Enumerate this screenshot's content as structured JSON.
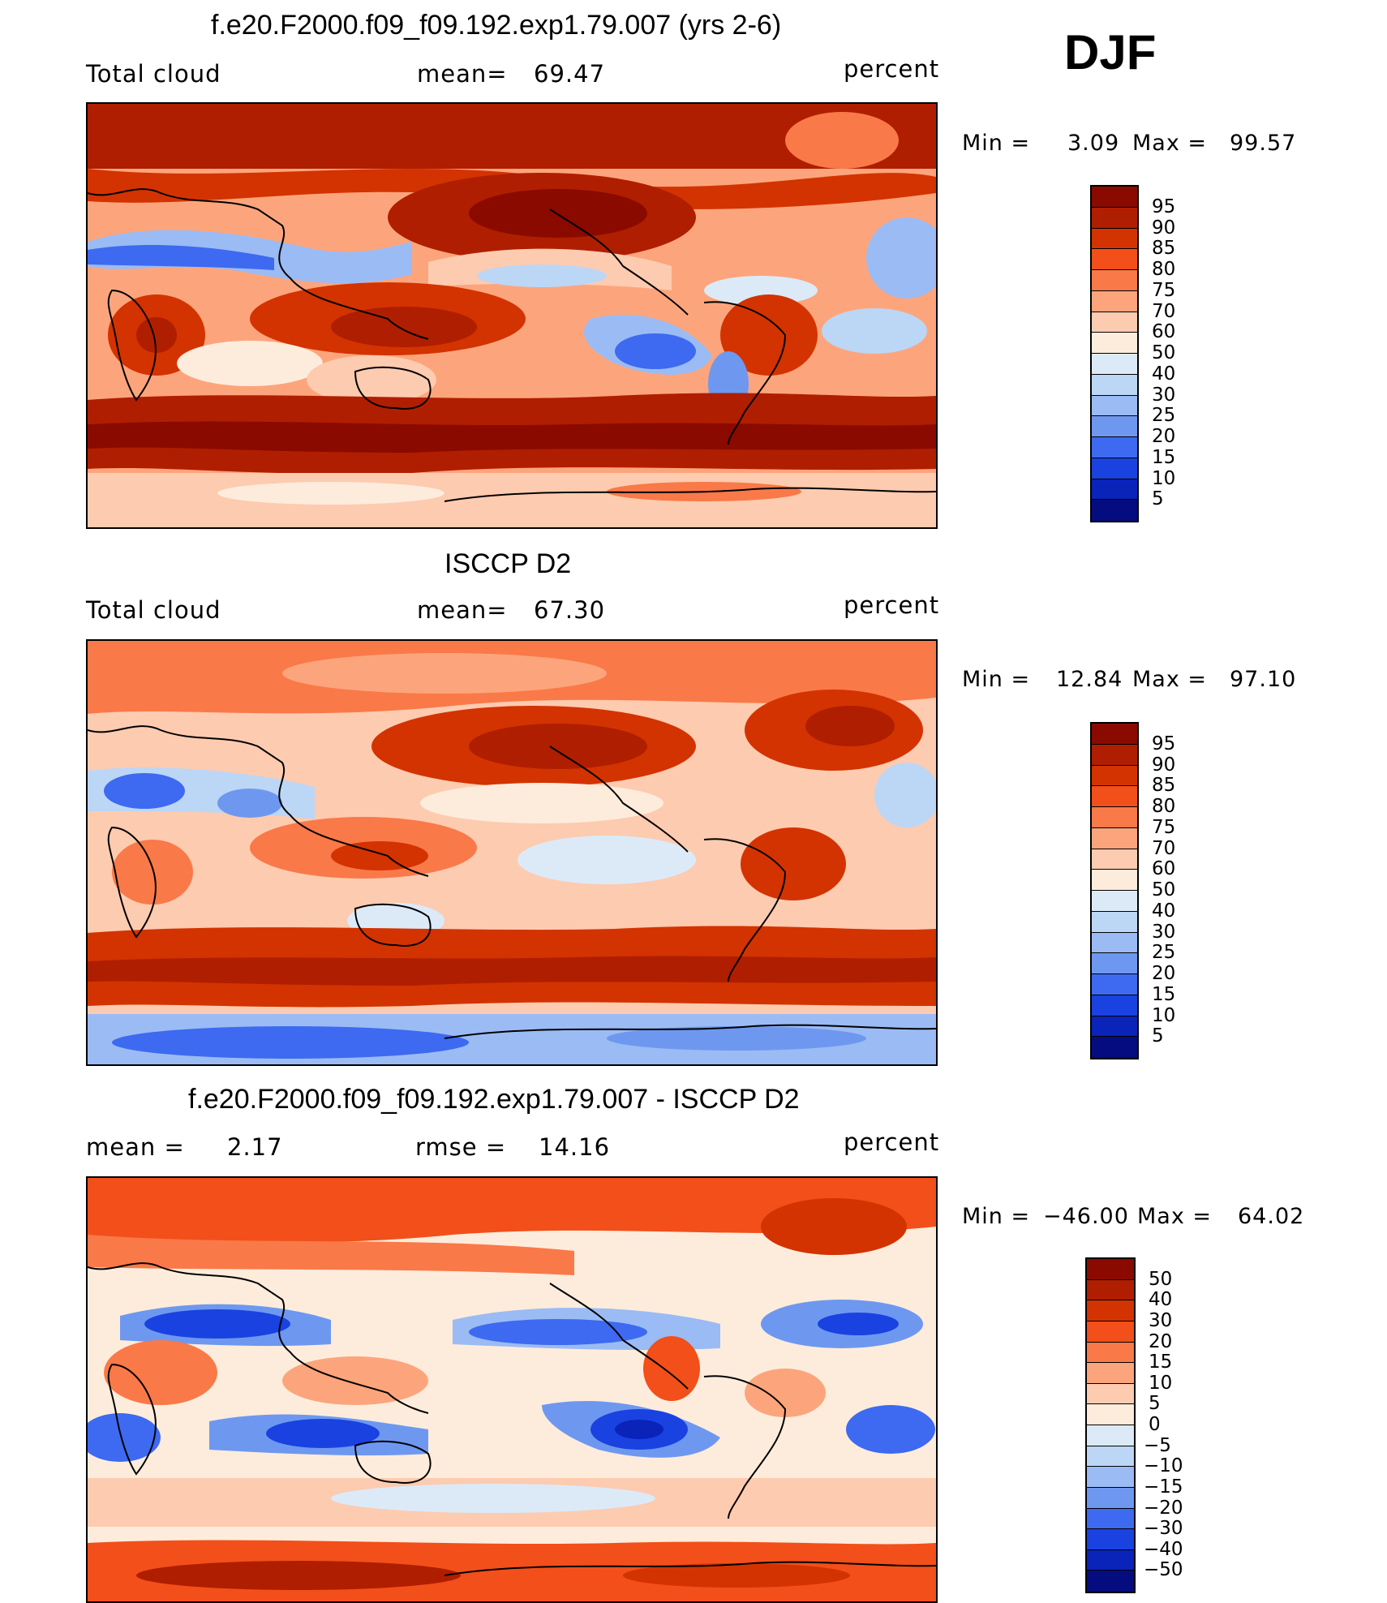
{
  "season": "DJF",
  "panels": [
    {
      "title": "f.e20.F2000.f09_f09.192.exp1.79.007 (yrs 2-6)",
      "left_label": "Total cloud",
      "center_label": "mean=",
      "center_value": "69.47",
      "units": "percent",
      "min_label": "Min =",
      "min_value": "3.09",
      "max_label": "Max =",
      "max_value": "99.57",
      "levels": [
        "95",
        "90",
        "85",
        "80",
        "75",
        "70",
        "60",
        "50",
        "40",
        "30",
        "25",
        "20",
        "15",
        "10",
        "5"
      ],
      "colors": [
        "#8a0a00",
        "#b01e00",
        "#d33300",
        "#f24f1a",
        "#fa7948",
        "#fca57c",
        "#fdcbb0",
        "#fdecdc",
        "#dceaf8",
        "#bcd6f6",
        "#9bbbf4",
        "#6e98f0",
        "#3d6af0",
        "#1a42e0",
        "#0a23b8",
        "#040c80"
      ]
    },
    {
      "title": "ISCCP D2",
      "left_label": "Total cloud",
      "center_label": "mean=",
      "center_value": "67.30",
      "units": "percent",
      "min_label": "Min =",
      "min_value": "12.84",
      "max_label": "Max =",
      "max_value": "97.10",
      "levels": [
        "95",
        "90",
        "85",
        "80",
        "75",
        "70",
        "60",
        "50",
        "40",
        "30",
        "25",
        "20",
        "15",
        "10",
        "5"
      ],
      "colors": [
        "#8a0a00",
        "#b01e00",
        "#d33300",
        "#f24f1a",
        "#fa7948",
        "#fca57c",
        "#fdcbb0",
        "#fdecdc",
        "#dceaf8",
        "#bcd6f6",
        "#9bbbf4",
        "#6e98f0",
        "#3d6af0",
        "#1a42e0",
        "#0a23b8",
        "#040c80"
      ]
    },
    {
      "title": "f.e20.F2000.f09_f09.192.exp1.79.007 - ISCCP D2",
      "left_label": "mean =",
      "left_value": "2.17",
      "center_label": "rmse =",
      "center_value": "14.16",
      "units": "percent",
      "min_label": "Min =",
      "min_value": "−46.00",
      "max_label": "Max =",
      "max_value": "64.02",
      "levels": [
        "50",
        "40",
        "30",
        "20",
        "15",
        "10",
        "5",
        "0",
        "−5",
        "−10",
        "−15",
        "−20",
        "−30",
        "−40",
        "−50"
      ],
      "colors": [
        "#8a0a00",
        "#b01e00",
        "#d33300",
        "#f24f1a",
        "#fa7948",
        "#fca57c",
        "#fdcbb0",
        "#fdecdc",
        "#dceaf8",
        "#bcd6f6",
        "#9bbbf4",
        "#6e98f0",
        "#3d6af0",
        "#1a42e0",
        "#0a23b8",
        "#040c80"
      ]
    }
  ]
}
